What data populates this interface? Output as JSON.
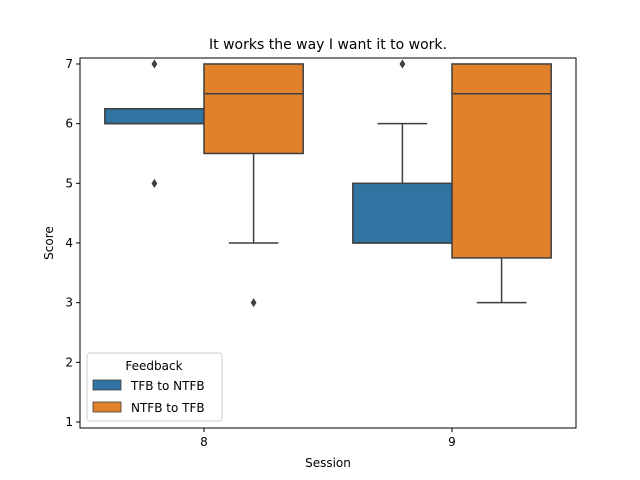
{
  "chart_data": {
    "type": "box",
    "title": "It works the way I want it to work.",
    "xlabel": "Session",
    "ylabel": "Score",
    "categories": [
      "8",
      "9"
    ],
    "ylim": [
      0.9,
      7.1
    ],
    "yticks": [
      1,
      2,
      3,
      4,
      5,
      6,
      7
    ],
    "legend": {
      "title": "Feedback",
      "placement": "lower-left"
    },
    "series": [
      {
        "name": "TFB to NTFB",
        "color": "#3274a1",
        "boxes": [
          {
            "category": "8",
            "q1": 6,
            "median": 6,
            "q3": 6.25,
            "whisker_low": 6,
            "whisker_high": 6.25,
            "outliers": [
              7,
              5
            ]
          },
          {
            "category": "9",
            "q1": 4,
            "median": 4,
            "q3": 5,
            "whisker_low": 4,
            "whisker_high": 6,
            "outliers": [
              7
            ]
          }
        ]
      },
      {
        "name": "NTFB to TFB",
        "color": "#e1812c",
        "boxes": [
          {
            "category": "8",
            "q1": 5.5,
            "median": 6.5,
            "q3": 7,
            "whisker_low": 4,
            "whisker_high": 7,
            "outliers": [
              3
            ]
          },
          {
            "category": "9",
            "q1": 3.75,
            "median": 6.5,
            "q3": 7,
            "whisker_low": 3,
            "whisker_high": 7,
            "outliers": []
          }
        ]
      }
    ]
  }
}
